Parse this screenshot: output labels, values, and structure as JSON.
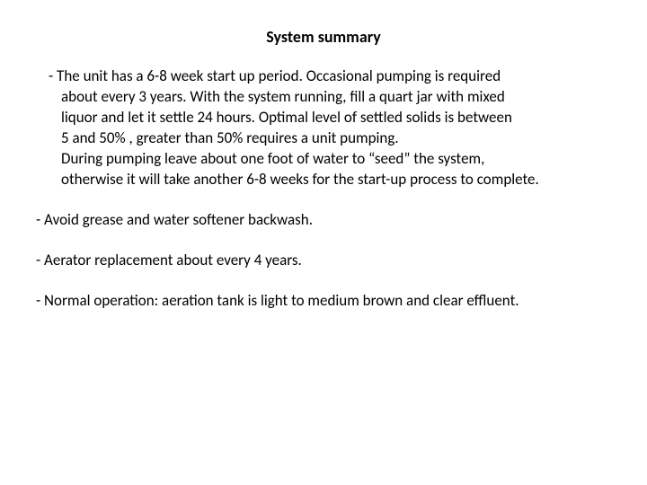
{
  "title": "System summary",
  "bullets": {
    "b1_line1": "- The unit has a 6-8 week start up period.  Occasional pumping is required",
    "b1_line2": "about every 3 years.  With the system running, fill a quart jar with mixed",
    "b1_line3": "liquor and let it settle 24 hours.  Optimal level of settled solids is between",
    "b1_line4": "5 and 50% ,  greater than 50% requires a unit pumping.",
    "b1_line5": "During pumping  leave about one foot of water to “seed” the system,",
    "b1_line6": "otherwise it will take another 6-8 weeks for the start-up process to complete.",
    "b2": "- Avoid grease and water softener backwash.",
    "b3": "- Aerator replacement about every 4 years.",
    "b4": "- Normal operation: aeration tank is light to medium brown and clear effluent."
  },
  "colors": {
    "text": "#000000",
    "background": "#ffffff"
  },
  "fontsize": {
    "title": 18,
    "body": 17
  }
}
